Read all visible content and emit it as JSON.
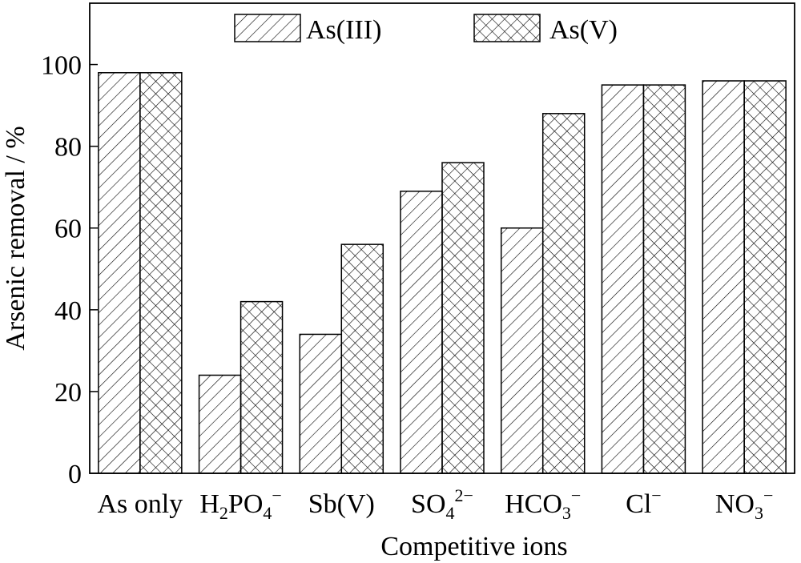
{
  "chart_data": {
    "type": "bar",
    "title": "",
    "xlabel": "Competitive ions",
    "ylabel": "Arsenic removal / %",
    "ylim": [
      0,
      115
    ],
    "yticks": [
      0,
      20,
      40,
      60,
      80,
      100
    ],
    "categories": [
      {
        "base": "As only",
        "sub": "",
        "sup": ""
      },
      {
        "base": "H",
        "sub": "2",
        "rest": "PO",
        "sub2": "4",
        "sup": "−"
      },
      {
        "base": "Sb(V)",
        "sub": "",
        "sup": ""
      },
      {
        "base": "SO",
        "sub": "4",
        "sup": "2−"
      },
      {
        "base": "HCO",
        "sub": "3",
        "sup": "−"
      },
      {
        "base": "Cl",
        "sub": "",
        "sup": "−"
      },
      {
        "base": "NO",
        "sub": "3",
        "sup": "−"
      }
    ],
    "series": [
      {
        "name": "As(III)",
        "pattern": "diagonal-hatch",
        "values": [
          98,
          24,
          34,
          69,
          60,
          95,
          96
        ]
      },
      {
        "name": "As(V)",
        "pattern": "cross-hatch",
        "values": [
          98,
          42,
          56,
          76,
          88,
          95,
          96
        ]
      }
    ],
    "legend_position": "top-center",
    "grid": false,
    "colors": {
      "stroke": "#000000",
      "background": "#ffffff"
    }
  }
}
